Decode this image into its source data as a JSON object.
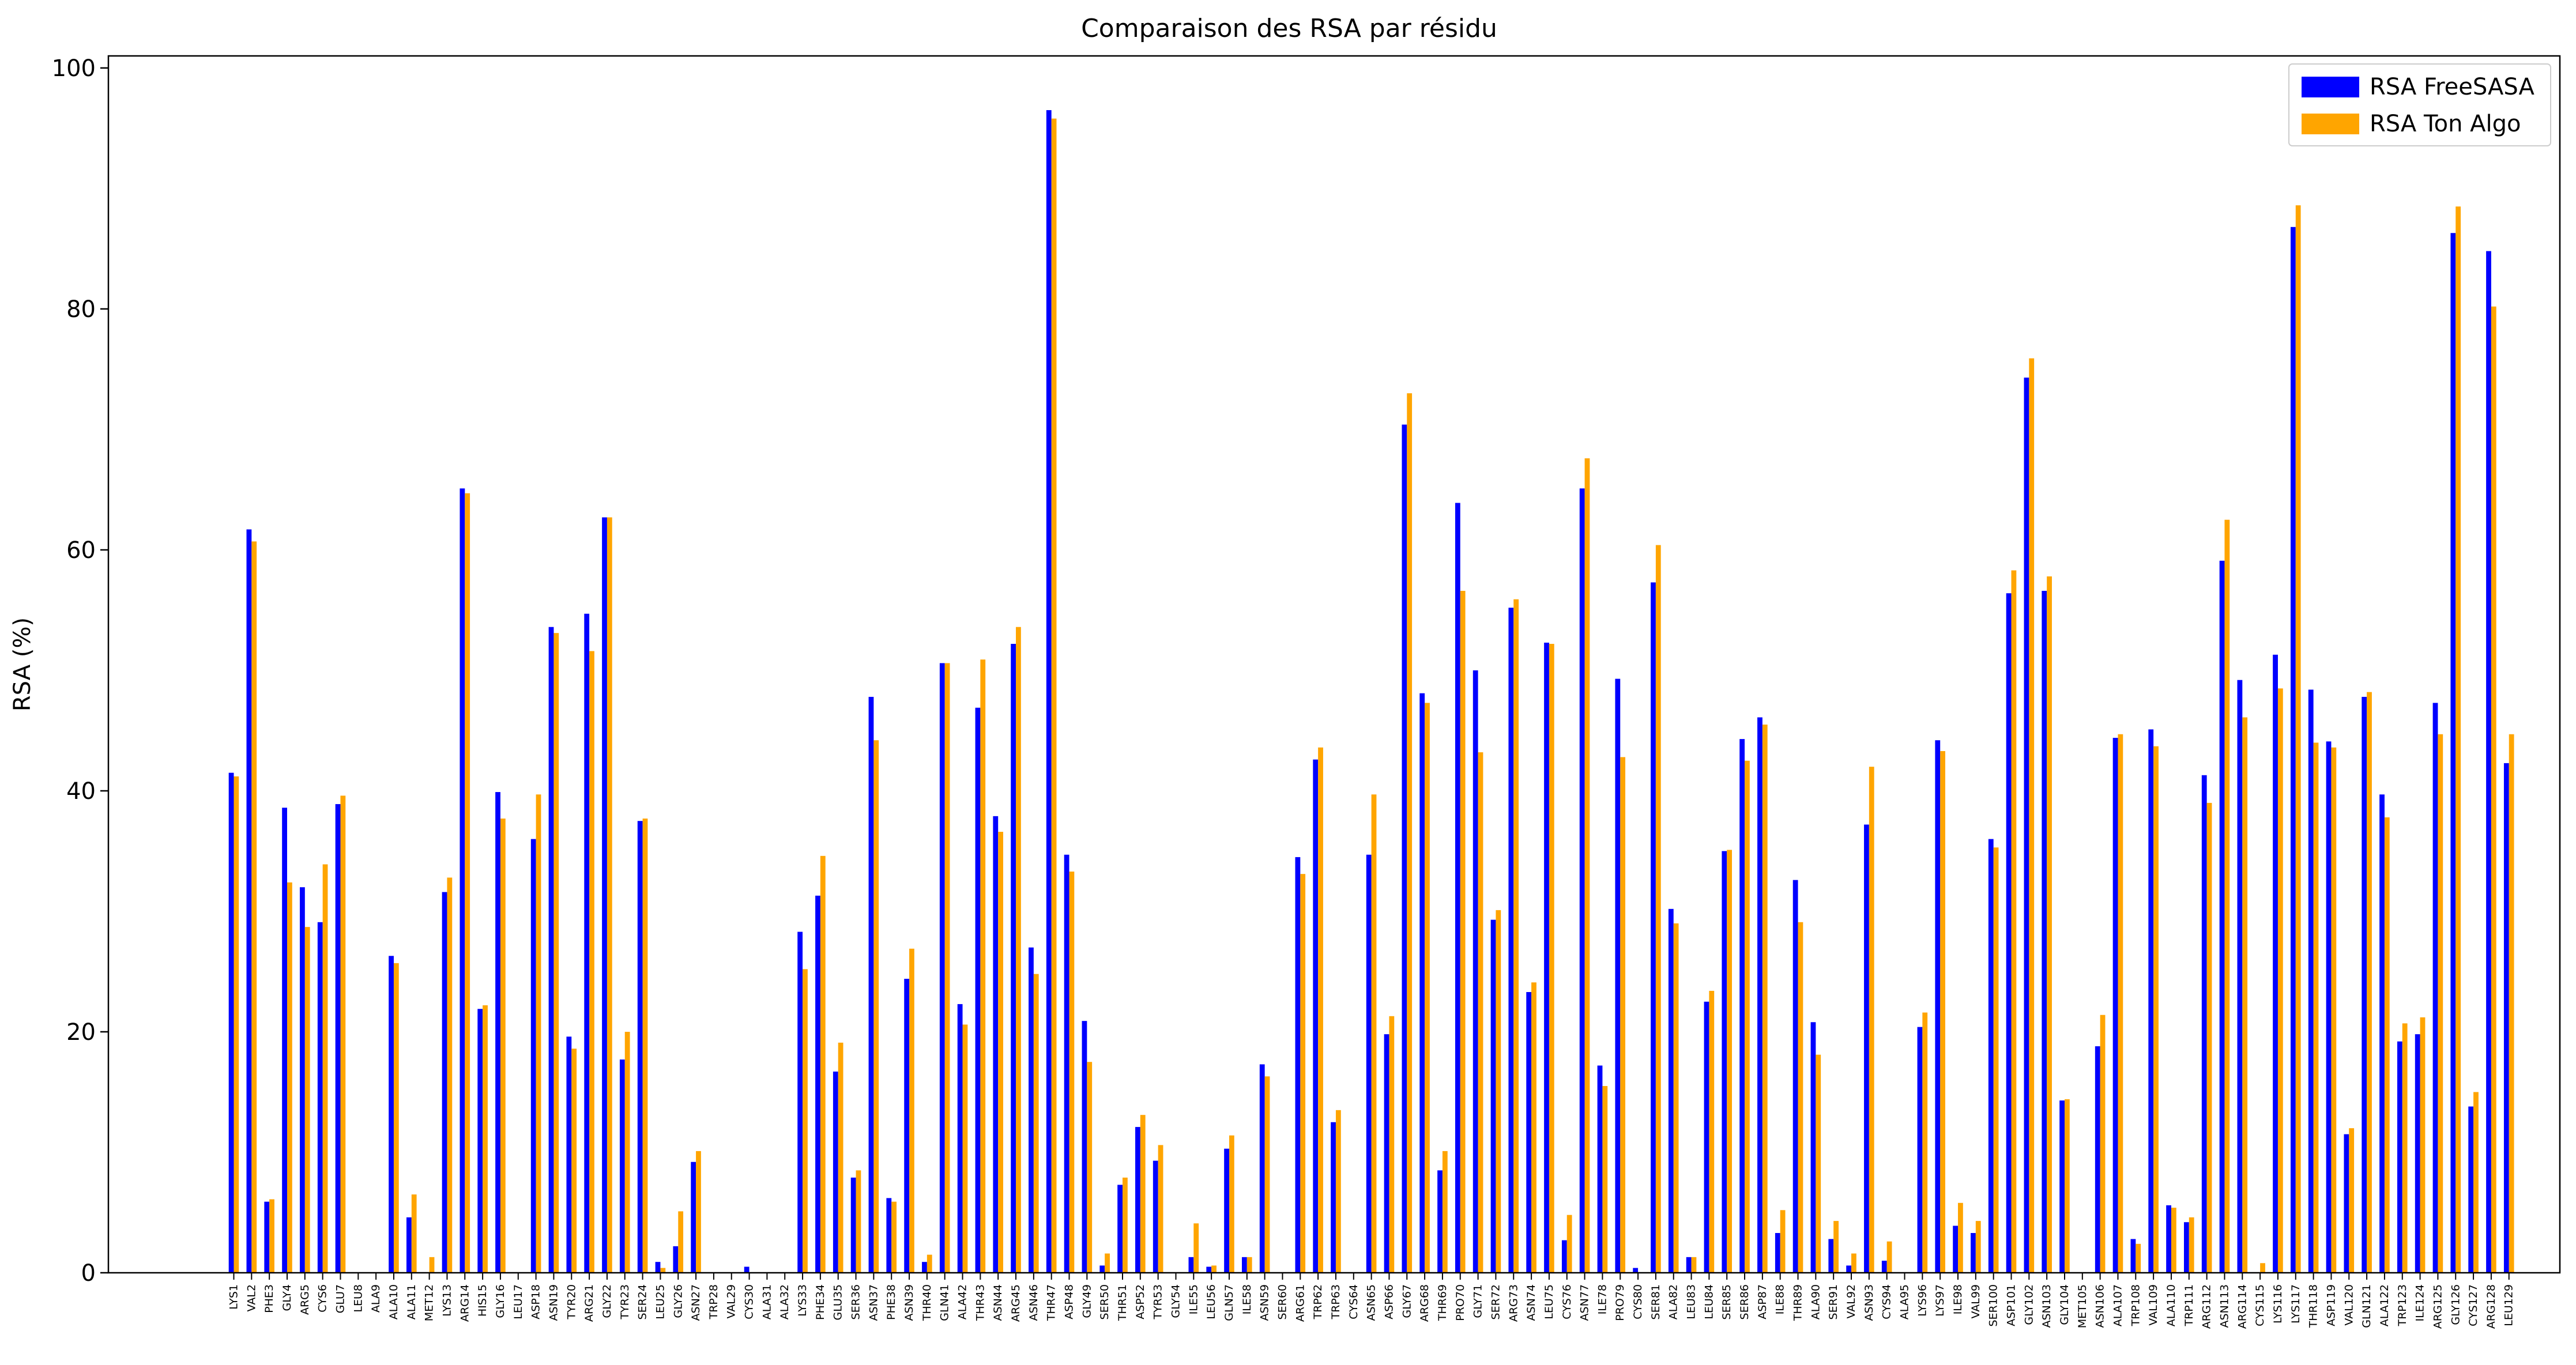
{
  "chart_data": {
    "type": "bar",
    "title": "Comparaison des RSA par résidu",
    "xlabel": "",
    "ylabel": "RSA (%)",
    "ylim": [
      0,
      101
    ],
    "yticks": [
      0,
      20,
      40,
      60,
      80,
      100
    ],
    "grid": false,
    "legend_position": "top-right",
    "categories": [
      "LYS1",
      "VAL2",
      "PHE3",
      "GLY4",
      "ARG5",
      "CYS6",
      "GLU7",
      "LEU8",
      "ALA9",
      "ALA10",
      "ALA11",
      "MET12",
      "LYS13",
      "ARG14",
      "HIS15",
      "GLY16",
      "LEU17",
      "ASP18",
      "ASN19",
      "TYR20",
      "ARG21",
      "GLY22",
      "TYR23",
      "SER24",
      "LEU25",
      "GLY26",
      "ASN27",
      "TRP28",
      "VAL29",
      "CYS30",
      "ALA31",
      "ALA32",
      "LYS33",
      "PHE34",
      "GLU35",
      "SER36",
      "ASN37",
      "PHE38",
      "ASN39",
      "THR40",
      "GLN41",
      "ALA42",
      "THR43",
      "ASN44",
      "ARG45",
      "ASN46",
      "THR47",
      "ASP48",
      "GLY49",
      "SER50",
      "THR51",
      "ASP52",
      "TYR53",
      "GLY54",
      "ILE55",
      "LEU56",
      "GLN57",
      "ILE58",
      "ASN59",
      "SER60",
      "ARG61",
      "TRP62",
      "TRP63",
      "CYS64",
      "ASN65",
      "ASP66",
      "GLY67",
      "ARG68",
      "THR69",
      "PRO70",
      "GLY71",
      "SER72",
      "ARG73",
      "ASN74",
      "LEU75",
      "CYS76",
      "ASN77",
      "ILE78",
      "PRO79",
      "CYS80",
      "SER81",
      "ALA82",
      "LEU83",
      "LEU84",
      "SER85",
      "SER86",
      "ASP87",
      "ILE88",
      "THR89",
      "ALA90",
      "SER91",
      "VAL92",
      "ASN93",
      "CYS94",
      "ALA95",
      "LYS96",
      "LYS97",
      "ILE98",
      "VAL99",
      "SER100",
      "ASP101",
      "GLY102",
      "ASN103",
      "GLY104",
      "MET105",
      "ASN106",
      "ALA107",
      "TRP108",
      "VAL109",
      "ALA110",
      "TRP111",
      "ARG112",
      "ASN113",
      "ARG114",
      "CYS115",
      "LYS116",
      "LYS117",
      "THR118",
      "ASP119",
      "VAL120",
      "GLN121",
      "ALA122",
      "TRP123",
      "ILE124",
      "ARG125",
      "GLY126",
      "CYS127",
      "ARG128",
      "LEU129"
    ],
    "series": [
      {
        "name": "RSA FreeSASA",
        "color": "#0000ff",
        "values": [
          41.5,
          61.7,
          5.9,
          38.6,
          32.0,
          29.1,
          38.9,
          0,
          0,
          26.3,
          4.6,
          0,
          31.6,
          65.1,
          21.9,
          39.9,
          0,
          36.0,
          53.6,
          19.6,
          54.7,
          62.7,
          17.7,
          37.5,
          0.9,
          2.2,
          9.2,
          0,
          0,
          0.5,
          0,
          0,
          28.3,
          31.3,
          16.7,
          7.9,
          47.8,
          6.2,
          24.4,
          0.9,
          50.6,
          22.3,
          46.9,
          37.9,
          52.2,
          27.0,
          96.5,
          34.7,
          20.9,
          0.6,
          7.3,
          12.1,
          9.3,
          0,
          1.3,
          0.5,
          10.3,
          1.3,
          17.3,
          0,
          34.5,
          42.6,
          12.5,
          0,
          34.7,
          19.8,
          70.4,
          48.1,
          8.5,
          63.9,
          50.0,
          29.3,
          55.2,
          23.3,
          52.3,
          2.7,
          65.1,
          17.2,
          49.3,
          0.4,
          57.3,
          30.2,
          1.3,
          22.5,
          35.0,
          44.3,
          46.1,
          3.3,
          32.6,
          20.8,
          2.8,
          0.6,
          37.2,
          1.0,
          0,
          20.4,
          44.2,
          3.9,
          3.3,
          36.0,
          56.4,
          74.3,
          56.6,
          14.3,
          0,
          18.8,
          44.4,
          2.8,
          45.1,
          5.6,
          4.2,
          41.3,
          59.1,
          49.2,
          0,
          51.3,
          86.8,
          48.4,
          44.1,
          11.5,
          47.8,
          39.7,
          19.2,
          19.8,
          47.3,
          86.3,
          13.8,
          84.8,
          42.3
        ]
      },
      {
        "name": "RSA Ton Algo",
        "color": "#ffa500",
        "values": [
          41.2,
          60.7,
          6.1,
          32.4,
          28.7,
          33.9,
          39.6,
          0,
          0,
          25.7,
          6.5,
          1.3,
          32.8,
          64.7,
          22.2,
          37.7,
          0,
          39.7,
          53.1,
          18.6,
          51.6,
          62.7,
          20.0,
          37.7,
          0.4,
          5.1,
          10.1,
          0,
          0,
          0,
          0,
          0,
          25.2,
          34.6,
          19.1,
          8.5,
          44.2,
          5.9,
          26.9,
          1.5,
          50.6,
          20.6,
          50.9,
          36.6,
          53.6,
          24.8,
          95.8,
          33.3,
          17.5,
          1.6,
          7.9,
          13.1,
          10.6,
          0,
          4.1,
          0.6,
          11.4,
          1.3,
          16.3,
          0,
          33.1,
          43.6,
          13.5,
          0,
          39.7,
          21.3,
          73.0,
          47.3,
          10.1,
          56.6,
          43.2,
          30.1,
          55.9,
          24.1,
          52.2,
          4.8,
          67.6,
          15.5,
          42.8,
          0,
          60.4,
          29.0,
          1.3,
          23.4,
          35.1,
          42.5,
          45.5,
          5.2,
          29.1,
          18.1,
          4.3,
          1.6,
          42.0,
          2.6,
          0,
          21.6,
          43.3,
          5.8,
          4.3,
          35.3,
          58.3,
          75.9,
          57.8,
          14.4,
          0,
          21.4,
          44.7,
          2.4,
          43.7,
          5.4,
          4.6,
          39.0,
          62.5,
          46.1,
          0.8,
          48.5,
          88.6,
          44.0,
          43.6,
          12.0,
          48.2,
          37.8,
          20.7,
          21.2,
          44.7,
          88.5,
          15.0,
          80.2,
          44.7
        ]
      }
    ]
  }
}
